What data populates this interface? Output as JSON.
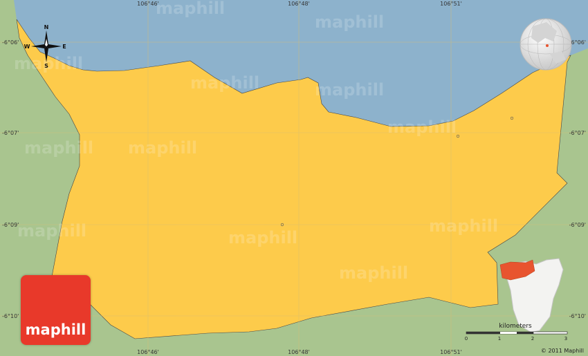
{
  "map": {
    "colors": {
      "water": "#8db2cc",
      "land_outside": "#a9c58f",
      "region": "#fdcb4b",
      "highlight": "#e8542f",
      "grid": "#d9c27a"
    },
    "top_lon_labels": [
      "106°46'",
      "106°48'",
      "106°51'"
    ],
    "bottom_lon_labels": [
      "106°46'",
      "106°48'",
      "106°51'"
    ],
    "left_lat_labels": [
      "-6°06'",
      "-6°07'",
      "-6°09'",
      "-6°10'"
    ],
    "right_lat_labels": [
      "-6°06'",
      "-6°07'",
      "-6°09'",
      "-6°10'"
    ],
    "watermark": "maphill"
  },
  "compass": {
    "n": "N",
    "s": "S",
    "e": "E",
    "w": "W"
  },
  "logo": {
    "text": "maphill"
  },
  "scale": {
    "title": "kilometers",
    "ticks": [
      "0",
      "1",
      "2",
      "3"
    ]
  },
  "copyright": "© 2011 Maphill"
}
